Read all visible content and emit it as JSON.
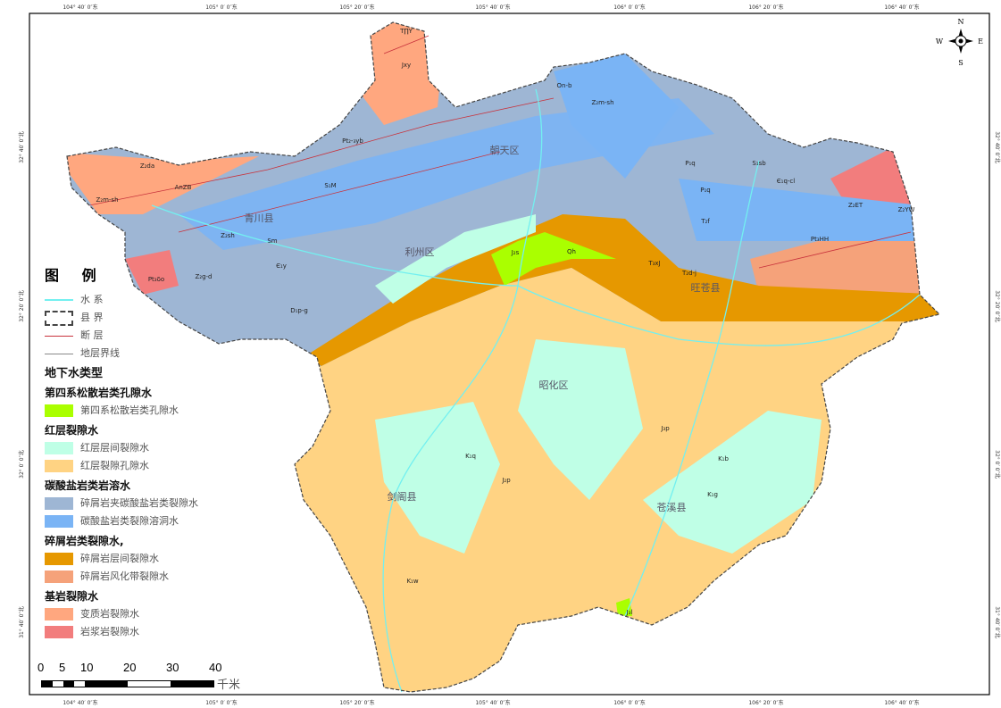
{
  "map": {
    "top_ticks": [
      "104° 40′ 0″东",
      "105° 0′ 0″东",
      "105° 20′ 0″东",
      "105° 40′ 0″东",
      "106° 0′ 0″东",
      "106° 20′ 0″东",
      "106° 40′ 0″东"
    ],
    "left_ticks": [
      "32° 40′ 0″北",
      "32° 20′ 0″北",
      "32° 0′ 0″北",
      "31° 40′ 0″北"
    ],
    "counties": [
      "青川县",
      "朝天区",
      "利州区",
      "旺苍县",
      "昭化区",
      "剑阁县",
      "苍溪县"
    ],
    "codes": [
      "T∏Y",
      "Jxy",
      "Pt₂-₃yb",
      "Z₂da",
      "AnZB",
      "Z₂m-sh",
      "Pt₃δo",
      "Z₂g-d",
      "Z₂sh",
      "Sm",
      "S₁M",
      "Є₁y",
      "D₁p-g",
      "On-b",
      "Z₂m-sh",
      "P₁q",
      "J₂s",
      "Qh",
      "T₃xJ",
      "T₂d-j",
      "P₁q",
      "S₁sb",
      "Є₁q-cl",
      "Z₂ET",
      "Z₂YW",
      "Pt₃HH",
      "T₂f",
      "J₃p",
      "K₁q",
      "K₁b",
      "K₁g",
      "J₂p",
      "J₃l",
      "K₁w"
    ],
    "compass": {
      "n": "N",
      "s": "S",
      "e": "E",
      "w": "W"
    },
    "colors": {
      "quaternary": "#aaff00",
      "red_interlayer": "#bfffe6",
      "red_pore": "#ffd383",
      "clastic_carbonate": "#9eb6d4",
      "carbonate": "#7ab4f5",
      "clastic_interlayer": "#e69800",
      "clastic_weathered": "#f5a27a",
      "metamorphic": "#ffa77f",
      "magmatic": "#f27d7d",
      "river": "#73f0f0",
      "fault": "#c8323c"
    }
  },
  "legend": {
    "title": "图  例",
    "lines": [
      "水  系",
      "县  界",
      "断  层",
      "地层界线"
    ],
    "gw_title": "地下水类型",
    "groups": [
      {
        "title": "第四系松散岩类孔隙水",
        "items": [
          "第四系松散岩类孔隙水"
        ]
      },
      {
        "title": "红层裂隙水",
        "items": [
          "红层层间裂隙水",
          "红层裂隙孔隙水"
        ]
      },
      {
        "title": "碳酸盐岩类岩溶水",
        "items": [
          "碎屑岩夹碳酸盐岩类裂隙水",
          "碳酸盐岩类裂隙溶洞水"
        ]
      },
      {
        "title": "碎屑岩类裂隙水,",
        "items": [
          "碎屑岩层间裂隙水",
          "碎屑岩风化带裂隙水"
        ]
      },
      {
        "title": "基岩裂隙水",
        "items": [
          "变质岩裂隙水",
          "岩浆岩裂隙水"
        ]
      }
    ]
  },
  "scale": {
    "ticks": [
      "0",
      "5",
      "10",
      "20",
      "30",
      "40"
    ],
    "unit": "千米"
  }
}
